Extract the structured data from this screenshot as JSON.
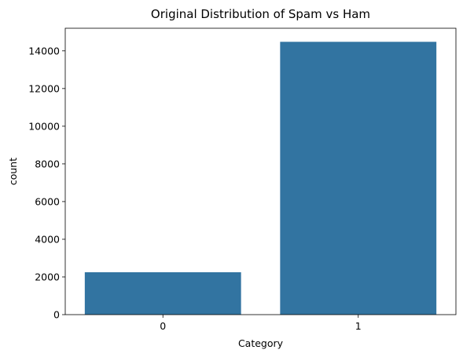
{
  "chart_data": {
    "type": "bar",
    "title": "Original Distribution of Spam vs Ham",
    "xlabel": "Category",
    "ylabel": "count",
    "categories": [
      "0",
      "1"
    ],
    "values": [
      2250,
      14480
    ],
    "ylim": [
      0,
      15200
    ],
    "yticks": [
      0,
      2000,
      4000,
      6000,
      8000,
      10000,
      12000,
      14000
    ],
    "ytick_labels": [
      "0",
      "2000",
      "4000",
      "6000",
      "8000",
      "10000",
      "12000",
      "14000"
    ],
    "grid": false,
    "bar_color": "#3274a1"
  }
}
